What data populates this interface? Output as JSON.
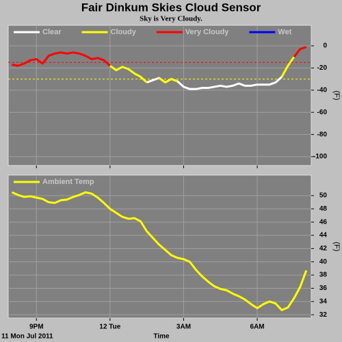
{
  "chart_data": [
    {
      "type": "line",
      "title": "Fair Dinkum Skies Cloud Sensor",
      "subtitle": "Sky is Very Cloudy.",
      "ylabel": "(F)",
      "x": [
        20,
        20.25,
        20.5,
        20.75,
        21,
        21.25,
        21.5,
        21.75,
        22,
        22.25,
        22.5,
        22.75,
        23,
        23.25,
        23.5,
        23.75,
        24,
        24.25,
        24.5,
        24.75,
        25,
        25.25,
        25.5,
        25.75,
        26,
        26.25,
        26.5,
        26.75,
        27,
        27.25,
        27.5,
        27.75,
        28,
        28.25,
        28.5,
        28.75,
        29,
        29.25,
        29.5,
        29.75,
        30,
        30.25,
        30.5,
        30.75,
        31,
        31.25,
        31.5,
        31.75,
        32
      ],
      "series": [
        {
          "name": "Clear",
          "color": "#ffffff",
          "values": [
            null,
            null,
            null,
            null,
            null,
            null,
            null,
            null,
            null,
            null,
            null,
            null,
            null,
            null,
            null,
            null,
            null,
            null,
            null,
            null,
            null,
            null,
            -33,
            -31,
            -29,
            -33,
            -30,
            -32,
            -37,
            -39,
            -39,
            -38,
            -38,
            -37,
            -36,
            -37,
            -36,
            -34,
            -36,
            -36,
            -35,
            -35,
            -35,
            -33,
            -28,
            null,
            null,
            null,
            null
          ]
        },
        {
          "name": "Cloudy",
          "color": "#ffff00",
          "values": [
            null,
            -18,
            -16,
            null,
            null,
            null,
            null,
            null,
            null,
            null,
            null,
            null,
            null,
            null,
            null,
            null,
            -18,
            -22,
            -19,
            -21,
            -25,
            -28,
            -33,
            null,
            -29,
            -33,
            -30,
            -32,
            null,
            null,
            null,
            null,
            null,
            null,
            null,
            null,
            null,
            null,
            null,
            null,
            null,
            null,
            null,
            null,
            -28,
            -18,
            -10,
            null,
            null
          ]
        },
        {
          "name": "Very Cloudy",
          "color": "#ff0000",
          "values": [
            -17,
            -18,
            -16,
            -13,
            -12,
            -16,
            -9,
            -7,
            -6,
            -7,
            -6,
            -7,
            -9,
            -12,
            -11,
            -13,
            -18,
            null,
            null,
            null,
            null,
            null,
            null,
            null,
            null,
            null,
            null,
            null,
            null,
            null,
            null,
            null,
            null,
            null,
            null,
            null,
            null,
            null,
            null,
            null,
            null,
            null,
            null,
            null,
            null,
            null,
            -10,
            -3,
            -1
          ]
        },
        {
          "name": "Wet",
          "color": "#0000ff",
          "values": [
            null,
            null,
            null,
            null,
            null,
            null,
            null,
            null,
            null,
            null,
            null,
            null,
            null,
            null,
            null,
            null,
            null,
            null,
            null,
            null,
            null,
            null,
            null,
            null,
            null,
            null,
            null,
            null,
            null,
            null,
            null,
            null,
            null,
            null,
            null,
            null,
            null,
            null,
            null,
            null,
            null,
            null,
            null,
            null,
            null,
            null,
            null,
            null,
            null
          ]
        }
      ],
      "thresholds": [
        {
          "value": -15,
          "color": "#ff0000"
        },
        {
          "value": -30,
          "color": "#ffff00"
        }
      ],
      "xlim": [
        19.85,
        32.2
      ],
      "xticks": [
        21,
        24,
        27,
        30
      ],
      "ylim": [
        -108,
        18.5
      ],
      "yticks": [
        0,
        -20,
        -40,
        -60,
        -80,
        -100
      ],
      "grid": true,
      "legend": "top-left"
    },
    {
      "type": "line",
      "ylabel": "(F)",
      "x_label": "Time",
      "date_label": "11 Mon Jul 2011",
      "x": [
        20,
        20.25,
        20.5,
        20.75,
        21,
        21.25,
        21.5,
        21.75,
        22,
        22.25,
        22.5,
        22.75,
        23,
        23.25,
        23.5,
        23.75,
        24,
        24.25,
        24.5,
        24.75,
        25,
        25.25,
        25.5,
        25.75,
        26,
        26.25,
        26.5,
        26.75,
        27,
        27.25,
        27.5,
        27.75,
        28,
        28.25,
        28.5,
        28.75,
        29,
        29.25,
        29.5,
        29.75,
        30,
        30.25,
        30.5,
        30.75,
        31,
        31.25,
        31.5,
        31.75,
        32
      ],
      "series": [
        {
          "name": "Ambient Temp",
          "color": "#ffff00",
          "values": [
            50.5,
            50.1,
            49.8,
            49.9,
            49.7,
            49.5,
            49.0,
            48.9,
            49.3,
            49.4,
            49.8,
            50.1,
            50.5,
            50.3,
            49.7,
            48.9,
            48.0,
            47.4,
            46.8,
            46.5,
            46.6,
            46.1,
            44.6,
            43.6,
            42.6,
            41.8,
            41.0,
            40.6,
            40.4,
            40.0,
            38.8,
            37.8,
            37.0,
            36.3,
            35.9,
            35.7,
            35.2,
            34.8,
            34.3,
            33.6,
            33.0,
            33.6,
            34.0,
            33.7,
            32.7,
            33.1,
            34.5,
            36.2,
            38.7
          ]
        }
      ],
      "xlim": [
        19.85,
        32.2
      ],
      "xticks": [
        {
          "value": 21,
          "label": "9PM"
        },
        {
          "value": 24,
          "label": "12 Tue"
        },
        {
          "value": 27,
          "label": "3AM"
        },
        {
          "value": 30,
          "label": "6AM"
        }
      ],
      "ylim": [
        31.5,
        53.1
      ],
      "yticks": [
        50,
        48,
        46,
        44,
        42,
        40,
        38,
        36,
        34,
        32
      ],
      "grid": true,
      "legend": "top-left"
    }
  ]
}
